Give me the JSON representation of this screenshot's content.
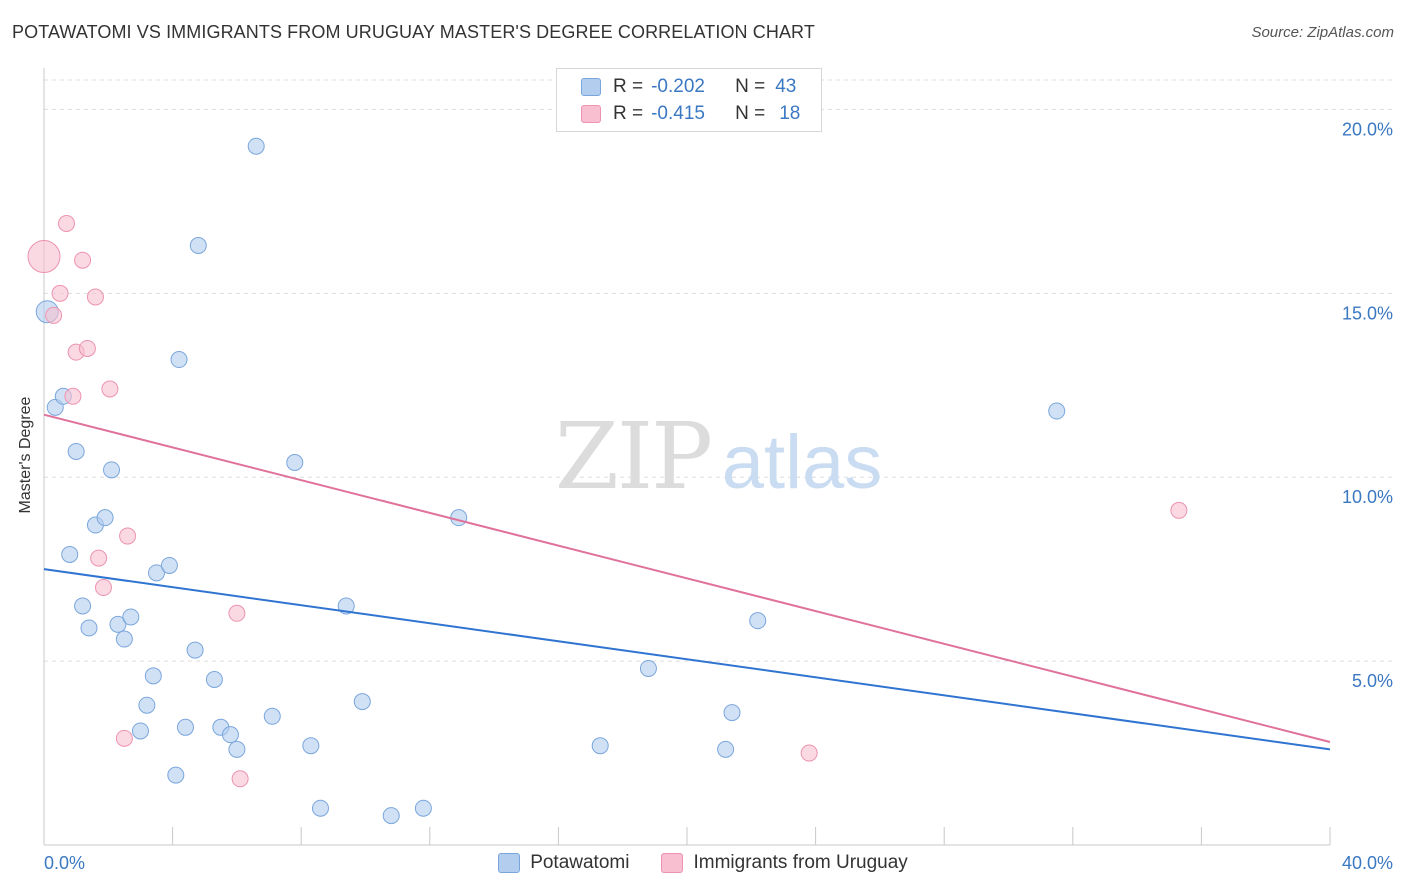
{
  "title": "POTAWATOMI VS IMMIGRANTS FROM URUGUAY MASTER'S DEGREE CORRELATION CHART",
  "source": "Source: ZipAtlas.com",
  "watermark": {
    "zip": "ZIP",
    "atlas": "atlas"
  },
  "legend": {
    "r_label": "R =",
    "n_label": "N =",
    "rows": [
      {
        "r": "-0.202",
        "n": "43"
      },
      {
        "r": "-0.415",
        "n": "18"
      }
    ]
  },
  "colors": {
    "blue_fill": "#b3cdef",
    "blue_stroke": "#7aa6dc",
    "blue_line": "#2f74d0",
    "pink_fill": "#f7bfd0",
    "pink_stroke": "#ec93b0",
    "pink_line": "#e0719a",
    "tick_text": "#3b78c2",
    "grid": "#dddddd"
  },
  "chart_data": {
    "type": "scatter",
    "title": "POTAWATOMI VS IMMIGRANTS FROM URUGUAY MASTER'S DEGREE CORRELATION CHART",
    "xlabel": "",
    "ylabel": "Master's Degree",
    "xlim": [
      0,
      40
    ],
    "ylim": [
      0,
      20.8
    ],
    "x_tick_labels": [
      "0.0%",
      "40.0%"
    ],
    "y_ticks": [
      5,
      10,
      15,
      20
    ],
    "y_tick_labels": [
      "5.0%",
      "10.0%",
      "15.0%",
      "20.0%"
    ],
    "grid": true,
    "legend_position": "top-center",
    "series": [
      {
        "name": "Potawatomi",
        "color": "#b3cdef",
        "points": [
          [
            0.1,
            14.5,
            22
          ],
          [
            0.35,
            11.9,
            16
          ],
          [
            0.6,
            12.2,
            16
          ],
          [
            0.8,
            7.9,
            16
          ],
          [
            1.0,
            10.7,
            16
          ],
          [
            1.2,
            6.5,
            16
          ],
          [
            1.4,
            5.9,
            16
          ],
          [
            1.6,
            8.7,
            16
          ],
          [
            1.9,
            8.9,
            16
          ],
          [
            2.1,
            10.2,
            16
          ],
          [
            2.3,
            6.0,
            16
          ],
          [
            2.5,
            5.6,
            16
          ],
          [
            2.7,
            6.2,
            16
          ],
          [
            3.0,
            3.1,
            16
          ],
          [
            3.2,
            3.8,
            16
          ],
          [
            3.4,
            4.6,
            16
          ],
          [
            3.5,
            7.4,
            16
          ],
          [
            3.9,
            7.6,
            16
          ],
          [
            4.1,
            1.9,
            16
          ],
          [
            4.2,
            13.2,
            16
          ],
          [
            4.4,
            3.2,
            16
          ],
          [
            4.7,
            5.3,
            16
          ],
          [
            4.8,
            16.3,
            16
          ],
          [
            5.3,
            4.5,
            16
          ],
          [
            5.5,
            3.2,
            16
          ],
          [
            5.8,
            3.0,
            16
          ],
          [
            6.0,
            2.6,
            16
          ],
          [
            6.6,
            19.0,
            16
          ],
          [
            7.1,
            3.5,
            16
          ],
          [
            7.8,
            10.4,
            16
          ],
          [
            8.3,
            2.7,
            16
          ],
          [
            8.6,
            1.0,
            16
          ],
          [
            9.4,
            6.5,
            16
          ],
          [
            9.9,
            3.9,
            16
          ],
          [
            10.8,
            0.8,
            16
          ],
          [
            11.8,
            1.0,
            16
          ],
          [
            12.9,
            8.9,
            16
          ],
          [
            17.3,
            2.7,
            16
          ],
          [
            18.8,
            4.8,
            16
          ],
          [
            21.2,
            2.6,
            16
          ],
          [
            21.4,
            3.6,
            16
          ],
          [
            22.2,
            6.1,
            16
          ],
          [
            31.5,
            11.8,
            16
          ]
        ]
      },
      {
        "name": "Immigrants from Uruguay",
        "color": "#f7bfd0",
        "points": [
          [
            0.0,
            16.0,
            32
          ],
          [
            0.3,
            14.4,
            16
          ],
          [
            0.5,
            15.0,
            16
          ],
          [
            0.7,
            16.9,
            16
          ],
          [
            0.9,
            12.2,
            16
          ],
          [
            1.0,
            13.4,
            16
          ],
          [
            1.2,
            15.9,
            16
          ],
          [
            1.35,
            13.5,
            16
          ],
          [
            1.6,
            14.9,
            16
          ],
          [
            1.7,
            7.8,
            16
          ],
          [
            1.85,
            7.0,
            16
          ],
          [
            2.05,
            12.4,
            16
          ],
          [
            2.5,
            2.9,
            16
          ],
          [
            2.6,
            8.4,
            16
          ],
          [
            6.0,
            6.3,
            16
          ],
          [
            6.1,
            1.8,
            16
          ],
          [
            23.8,
            2.5,
            16
          ],
          [
            35.3,
            9.1,
            16
          ]
        ]
      }
    ],
    "trendlines": [
      {
        "series": "Potawatomi",
        "x": [
          0,
          40
        ],
        "y": [
          7.5,
          2.6
        ]
      },
      {
        "series": "Immigrants from Uruguay",
        "x": [
          0,
          40
        ],
        "y": [
          11.7,
          2.8
        ]
      }
    ]
  },
  "bottom_legend": {
    "items": [
      "Potawatomi",
      "Immigrants from Uruguay"
    ]
  }
}
